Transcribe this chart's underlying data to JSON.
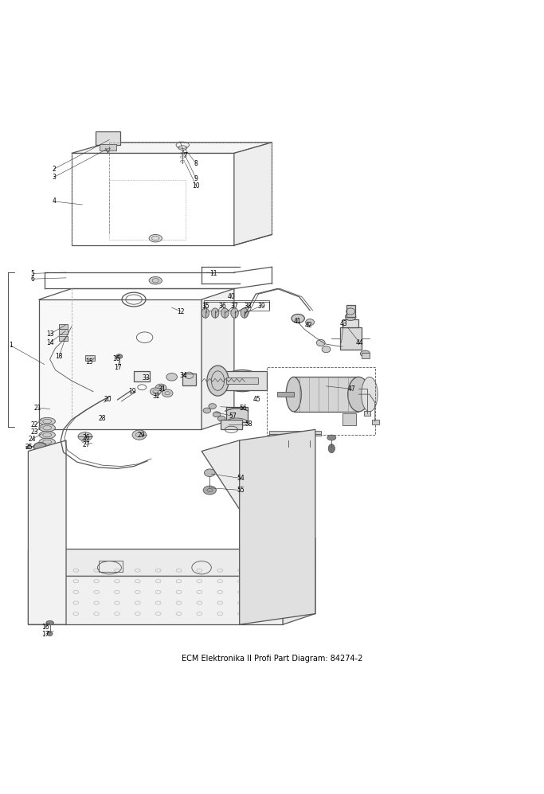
{
  "title": "ECM Elektronika II Profi Part Diagram: 84274-2",
  "background_color": "#ffffff",
  "line_color": "#555555",
  "text_color": "#000000",
  "fig_width": 6.83,
  "fig_height": 9.97,
  "dpi": 100
}
